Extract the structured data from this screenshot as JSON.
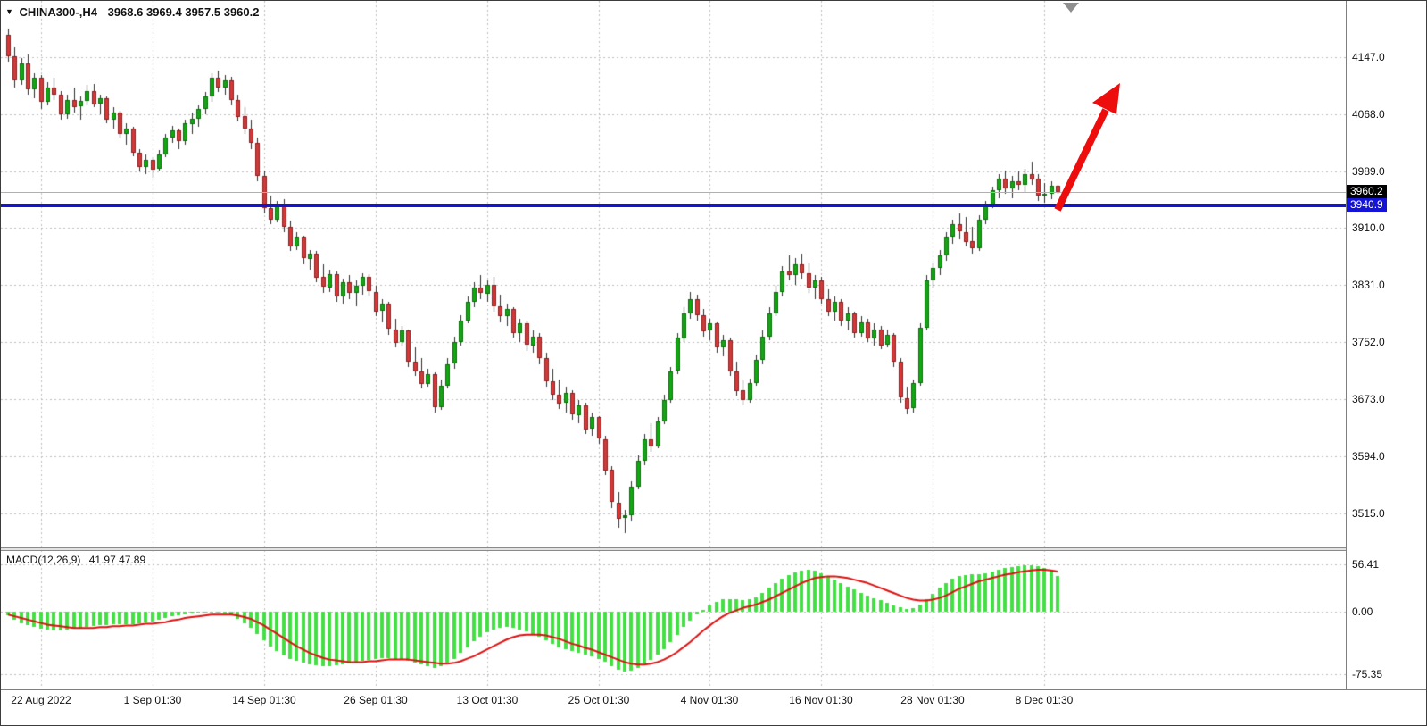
{
  "chart_data": {
    "type": "candlestick",
    "platform_hint": "mt4-chart",
    "symbol": "CHINA300-,H4",
    "timeframe": "H4",
    "last_quote": {
      "open": "3968.6",
      "high": "3969.4",
      "low": "3957.5",
      "close": "3960.2",
      "display": "3968.6 3969.4 3957.5 3960.2"
    },
    "price_axis": {
      "range": [
        3468,
        4190
      ],
      "ticks": [
        {
          "v": 4147.0,
          "label": "4147.0"
        },
        {
          "v": 4068.0,
          "label": "4068.0"
        },
        {
          "v": 3989.0,
          "label": "3989.0"
        },
        {
          "v": 3910.0,
          "label": "3910.0"
        },
        {
          "v": 3831.0,
          "label": "3831.0"
        },
        {
          "v": 3752.0,
          "label": "3752.0"
        },
        {
          "v": 3673.0,
          "label": "3673.0"
        },
        {
          "v": 3594.0,
          "label": "3594.0"
        },
        {
          "v": 3515.0,
          "label": "3515.0"
        }
      ]
    },
    "time_axis": {
      "ticks": [
        {
          "i": 5,
          "label": "22 Aug 2022"
        },
        {
          "i": 22,
          "label": "1 Sep 01:30"
        },
        {
          "i": 39,
          "label": "14 Sep 01:30"
        },
        {
          "i": 56,
          "label": "26 Sep 01:30"
        },
        {
          "i": 73,
          "label": "13 Oct 01:30"
        },
        {
          "i": 90,
          "label": "25 Oct 01:30"
        },
        {
          "i": 107,
          "label": "4 Nov 01:30"
        },
        {
          "i": 124,
          "label": "16 Nov 01:30"
        },
        {
          "i": 141,
          "label": "28 Nov 01:30"
        },
        {
          "i": 158,
          "label": "8 Dec 01:30"
        }
      ]
    },
    "macd_axis": {
      "range": [
        -82,
        66
      ],
      "ticks": [
        {
          "v": 56.41,
          "label": "56.41"
        },
        {
          "v": 0,
          "label": "0.00"
        },
        {
          "v": -75.35,
          "label": "-75.35"
        }
      ]
    },
    "indicator": {
      "name": "MACD(12,26,9)",
      "values_display": "41.97 47.89",
      "main_last": 41.97,
      "signal_last": 47.89
    },
    "objects": {
      "hline": {
        "price": 3940.9,
        "label": "3940.9",
        "color": "#1414d8"
      },
      "current_price": {
        "price": 3960.2,
        "label": "3960.2",
        "tag_bg": "#000000"
      },
      "arrow": {
        "color": "#ee0d0d"
      }
    },
    "colors": {
      "up": "#14a614",
      "up_border": "#0a6e0a",
      "down": "#d23939",
      "down_border": "#8f1f1f",
      "wick": "#2e2e2e",
      "grid": "#bdbdbd",
      "macd_hist": "#44df44",
      "macd_signal": "#dd1111",
      "current_price_line": "#b0b0b0",
      "axis_text": "#111111"
    },
    "candles": [
      [
        4178,
        4186,
        4140,
        4148
      ],
      [
        4148,
        4160,
        4105,
        4115
      ],
      [
        4115,
        4145,
        4108,
        4138
      ],
      [
        4138,
        4150,
        4095,
        4102
      ],
      [
        4102,
        4125,
        4090,
        4118
      ],
      [
        4118,
        4122,
        4075,
        4085
      ],
      [
        4085,
        4112,
        4080,
        4105
      ],
      [
        4105,
        4118,
        4088,
        4095
      ],
      [
        4095,
        4100,
        4060,
        4068
      ],
      [
        4068,
        4095,
        4062,
        4088
      ],
      [
        4088,
        4105,
        4070,
        4078
      ],
      [
        4078,
        4092,
        4060,
        4086
      ],
      [
        4086,
        4108,
        4080,
        4100
      ],
      [
        4100,
        4110,
        4078,
        4082
      ],
      [
        4082,
        4095,
        4068,
        4090
      ],
      [
        4090,
        4092,
        4055,
        4060
      ],
      [
        4060,
        4078,
        4048,
        4070
      ],
      [
        4070,
        4072,
        4035,
        4040
      ],
      [
        4040,
        4055,
        4025,
        4048
      ],
      [
        4048,
        4050,
        4010,
        4015
      ],
      [
        4015,
        4020,
        3988,
        3995
      ],
      [
        3995,
        4012,
        3985,
        4005
      ],
      [
        4005,
        4008,
        3980,
        3992
      ],
      [
        3992,
        4018,
        3990,
        4012
      ],
      [
        4012,
        4040,
        4008,
        4035
      ],
      [
        4035,
        4052,
        4028,
        4045
      ],
      [
        4045,
        4048,
        4020,
        4030
      ],
      [
        4030,
        4060,
        4025,
        4055
      ],
      [
        4055,
        4070,
        4040,
        4062
      ],
      [
        4062,
        4080,
        4050,
        4075
      ],
      [
        4075,
        4098,
        4068,
        4092
      ],
      [
        4092,
        4125,
        4085,
        4118
      ],
      [
        4118,
        4128,
        4098,
        4105
      ],
      [
        4105,
        4122,
        4095,
        4115
      ],
      [
        4115,
        4120,
        4080,
        4088
      ],
      [
        4088,
        4095,
        4058,
        4065
      ],
      [
        4065,
        4078,
        4040,
        4048
      ],
      [
        4048,
        4060,
        4020,
        4028
      ],
      [
        4028,
        4035,
        3975,
        3982
      ],
      [
        3982,
        3990,
        3930,
        3938
      ],
      [
        3938,
        3955,
        3915,
        3922
      ],
      [
        3922,
        3948,
        3918,
        3942
      ],
      [
        3942,
        3950,
        3905,
        3912
      ],
      [
        3912,
        3920,
        3878,
        3885
      ],
      [
        3885,
        3905,
        3880,
        3898
      ],
      [
        3898,
        3900,
        3860,
        3868
      ],
      [
        3868,
        3880,
        3852,
        3875
      ],
      [
        3875,
        3878,
        3835,
        3842
      ],
      [
        3842,
        3860,
        3820,
        3828
      ],
      [
        3828,
        3852,
        3822,
        3846
      ],
      [
        3846,
        3850,
        3808,
        3815
      ],
      [
        3815,
        3840,
        3805,
        3835
      ],
      [
        3835,
        3845,
        3812,
        3820
      ],
      [
        3820,
        3838,
        3802,
        3830
      ],
      [
        3830,
        3848,
        3818,
        3842
      ],
      [
        3842,
        3846,
        3815,
        3822
      ],
      [
        3822,
        3830,
        3788,
        3795
      ],
      [
        3795,
        3812,
        3780,
        3805
      ],
      [
        3805,
        3808,
        3762,
        3770
      ],
      [
        3770,
        3785,
        3745,
        3752
      ],
      [
        3752,
        3775,
        3748,
        3768
      ],
      [
        3768,
        3770,
        3718,
        3725
      ],
      [
        3725,
        3745,
        3705,
        3712
      ],
      [
        3712,
        3730,
        3688,
        3695
      ],
      [
        3695,
        3715,
        3690,
        3708
      ],
      [
        3708,
        3710,
        3655,
        3662
      ],
      [
        3662,
        3700,
        3658,
        3692
      ],
      [
        3692,
        3730,
        3688,
        3722
      ],
      [
        3722,
        3760,
        3715,
        3752
      ],
      [
        3752,
        3790,
        3748,
        3782
      ],
      [
        3782,
        3815,
        3778,
        3808
      ],
      [
        3808,
        3835,
        3800,
        3828
      ],
      [
        3828,
        3845,
        3812,
        3820
      ],
      [
        3820,
        3838,
        3808,
        3832
      ],
      [
        3832,
        3842,
        3795,
        3802
      ],
      [
        3802,
        3818,
        3780,
        3788
      ],
      [
        3788,
        3805,
        3775,
        3798
      ],
      [
        3798,
        3800,
        3758,
        3765
      ],
      [
        3765,
        3785,
        3752,
        3778
      ],
      [
        3778,
        3782,
        3740,
        3748
      ],
      [
        3748,
        3768,
        3738,
        3760
      ],
      [
        3760,
        3765,
        3722,
        3730
      ],
      [
        3730,
        3738,
        3690,
        3698
      ],
      [
        3698,
        3715,
        3672,
        3680
      ],
      [
        3680,
        3700,
        3660,
        3668
      ],
      [
        3668,
        3690,
        3655,
        3682
      ],
      [
        3682,
        3685,
        3645,
        3652
      ],
      [
        3652,
        3672,
        3640,
        3665
      ],
      [
        3665,
        3668,
        3625,
        3632
      ],
      [
        3632,
        3655,
        3622,
        3648
      ],
      [
        3648,
        3650,
        3612,
        3618
      ],
      [
        3618,
        3622,
        3568,
        3575
      ],
      [
        3575,
        3580,
        3522,
        3530
      ],
      [
        3530,
        3545,
        3495,
        3508
      ],
      [
        3508,
        3520,
        3488,
        3512
      ],
      [
        3512,
        3560,
        3505,
        3552
      ],
      [
        3552,
        3595,
        3548,
        3588
      ],
      [
        3588,
        3625,
        3582,
        3618
      ],
      [
        3618,
        3640,
        3600,
        3608
      ],
      [
        3608,
        3648,
        3605,
        3642
      ],
      [
        3642,
        3680,
        3638,
        3672
      ],
      [
        3672,
        3718,
        3668,
        3712
      ],
      [
        3712,
        3765,
        3708,
        3758
      ],
      [
        3758,
        3800,
        3752,
        3792
      ],
      [
        3792,
        3822,
        3785,
        3812
      ],
      [
        3812,
        3818,
        3782,
        3790
      ],
      [
        3790,
        3798,
        3760,
        3768
      ],
      [
        3768,
        3785,
        3755,
        3778
      ],
      [
        3778,
        3780,
        3738,
        3745
      ],
      [
        3745,
        3762,
        3732,
        3755
      ],
      [
        3755,
        3758,
        3705,
        3712
      ],
      [
        3712,
        3725,
        3678,
        3685
      ],
      [
        3685,
        3700,
        3665,
        3672
      ],
      [
        3672,
        3702,
        3668,
        3696
      ],
      [
        3696,
        3735,
        3692,
        3728
      ],
      [
        3728,
        3768,
        3722,
        3760
      ],
      [
        3760,
        3800,
        3755,
        3792
      ],
      [
        3792,
        3830,
        3788,
        3822
      ],
      [
        3822,
        3858,
        3815,
        3850
      ],
      [
        3850,
        3872,
        3838,
        3845
      ],
      [
        3845,
        3868,
        3832,
        3860
      ],
      [
        3860,
        3875,
        3840,
        3848
      ],
      [
        3848,
        3862,
        3820,
        3828
      ],
      [
        3828,
        3845,
        3812,
        3838
      ],
      [
        3838,
        3842,
        3805,
        3812
      ],
      [
        3812,
        3825,
        3788,
        3795
      ],
      [
        3795,
        3815,
        3782,
        3808
      ],
      [
        3808,
        3812,
        3775,
        3782
      ],
      [
        3782,
        3800,
        3768,
        3792
      ],
      [
        3792,
        3795,
        3758,
        3765
      ],
      [
        3765,
        3788,
        3760,
        3780
      ],
      [
        3780,
        3785,
        3752,
        3758
      ],
      [
        3758,
        3778,
        3748,
        3770
      ],
      [
        3770,
        3775,
        3742,
        3748
      ],
      [
        3748,
        3770,
        3745,
        3762
      ],
      [
        3762,
        3765,
        3718,
        3725
      ],
      [
        3725,
        3730,
        3668,
        3675
      ],
      [
        3675,
        3690,
        3652,
        3660
      ],
      [
        3660,
        3700,
        3655,
        3695
      ],
      [
        3695,
        3778,
        3692,
        3772
      ],
      [
        3772,
        3845,
        3768,
        3838
      ],
      [
        3838,
        3862,
        3828,
        3855
      ],
      [
        3855,
        3880,
        3845,
        3872
      ],
      [
        3872,
        3905,
        3865,
        3898
      ],
      [
        3898,
        3922,
        3888,
        3915
      ],
      [
        3915,
        3930,
        3895,
        3905
      ],
      [
        3905,
        3925,
        3885,
        3892
      ],
      [
        3892,
        3912,
        3875,
        3882
      ],
      [
        3882,
        3928,
        3878,
        3922
      ],
      [
        3922,
        3948,
        3915,
        3942
      ],
      [
        3942,
        3968,
        3938,
        3962
      ],
      [
        3962,
        3985,
        3952,
        3978
      ],
      [
        3978,
        3990,
        3958,
        3965
      ],
      [
        3965,
        3982,
        3952,
        3975
      ],
      [
        3975,
        3988,
        3962,
        3970
      ],
      [
        3970,
        3992,
        3960,
        3985
      ],
      [
        3985,
        4002,
        3970,
        3978
      ],
      [
        3978,
        3985,
        3948,
        3955
      ],
      [
        3955,
        3972,
        3945,
        3958
      ],
      [
        3958,
        3975,
        3950,
        3968.6
      ],
      [
        3968.6,
        3969.4,
        3957.5,
        3960.2
      ]
    ],
    "macd": {
      "hist": [
        -5,
        -10,
        -14,
        -17,
        -19,
        -21,
        -22,
        -23,
        -23,
        -22,
        -21,
        -20,
        -19,
        -18,
        -17,
        -17,
        -16,
        -16,
        -15,
        -15,
        -14,
        -13,
        -12,
        -10,
        -8,
        -6,
        -5,
        -4,
        -3,
        -2,
        -2,
        -1,
        -2,
        -3,
        -5,
        -9,
        -14,
        -20,
        -27,
        -35,
        -42,
        -48,
        -53,
        -57,
        -60,
        -62,
        -64,
        -65,
        -66,
        -66,
        -65,
        -64,
        -63,
        -62,
        -60,
        -58,
        -57,
        -56,
        -56,
        -57,
        -58,
        -60,
        -62,
        -64,
        -66,
        -68,
        -66,
        -62,
        -57,
        -50,
        -43,
        -36,
        -30,
        -25,
        -22,
        -20,
        -19,
        -20,
        -22,
        -24,
        -27,
        -31,
        -35,
        -39,
        -43,
        -46,
        -48,
        -50,
        -52,
        -54,
        -57,
        -61,
        -66,
        -70,
        -72,
        -71,
        -68,
        -63,
        -58,
        -52,
        -45,
        -37,
        -28,
        -19,
        -11,
        -4,
        2,
        7,
        11,
        14,
        15,
        14,
        13,
        14,
        17,
        22,
        28,
        34,
        39,
        44,
        47,
        49,
        50,
        49,
        46,
        42,
        38,
        34,
        30,
        26,
        22,
        19,
        16,
        13,
        10,
        7,
        5,
        3,
        4,
        8,
        14,
        21,
        28,
        34,
        39,
        42,
        44,
        45,
        45,
        46,
        48,
        50,
        52,
        53,
        54,
        55,
        55,
        54,
        52,
        49,
        41.97
      ],
      "signal": [
        -4,
        -6,
        -8,
        -10,
        -12,
        -14,
        -16,
        -17,
        -18,
        -19,
        -20,
        -20,
        -20,
        -20,
        -19,
        -19,
        -18,
        -18,
        -17,
        -17,
        -16,
        -15,
        -15,
        -14,
        -13,
        -11,
        -10,
        -8,
        -7,
        -6,
        -5,
        -4,
        -4,
        -4,
        -4,
        -5,
        -7,
        -9,
        -13,
        -17,
        -22,
        -27,
        -32,
        -37,
        -42,
        -46,
        -50,
        -53,
        -56,
        -58,
        -59,
        -60,
        -61,
        -61,
        -61,
        -60,
        -60,
        -59,
        -58,
        -58,
        -58,
        -58,
        -59,
        -60,
        -61,
        -62,
        -63,
        -63,
        -62,
        -60,
        -57,
        -54,
        -50,
        -46,
        -42,
        -38,
        -34,
        -31,
        -29,
        -28,
        -28,
        -28,
        -29,
        -31,
        -33,
        -36,
        -39,
        -41,
        -44,
        -46,
        -49,
        -52,
        -55,
        -58,
        -61,
        -63,
        -64,
        -64,
        -63,
        -61,
        -58,
        -54,
        -49,
        -43,
        -37,
        -30,
        -23,
        -17,
        -11,
        -6,
        -2,
        1,
        4,
        6,
        8,
        11,
        14,
        18,
        22,
        26,
        30,
        34,
        37,
        40,
        41,
        42,
        42,
        41,
        40,
        38,
        36,
        34,
        31,
        28,
        25,
        22,
        19,
        16,
        14,
        13,
        13,
        14,
        16,
        19,
        23,
        27,
        30,
        33,
        36,
        38,
        40,
        42,
        44,
        45,
        47,
        48,
        49,
        50,
        50,
        49,
        47.89
      ]
    }
  }
}
